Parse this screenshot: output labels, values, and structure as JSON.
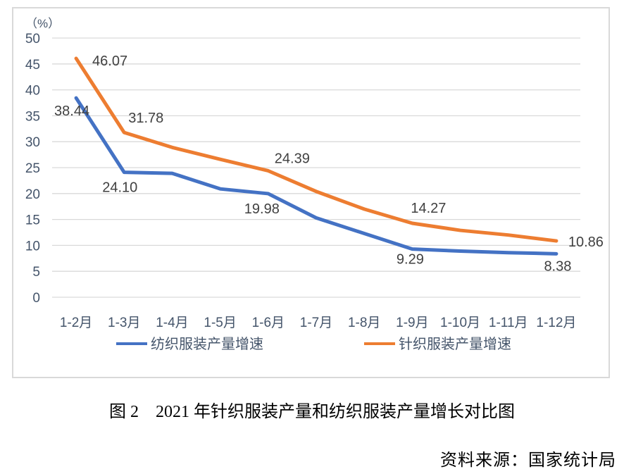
{
  "figure": {
    "caption": "图 2　2021 年针织服装产量和纺织服装产量增长对比图",
    "source": "资料来源：国家统计局"
  },
  "chart_data": {
    "type": "line",
    "title": "",
    "unit_label": "（%）",
    "categories": [
      "1-2月",
      "1-3月",
      "1-4月",
      "1-5月",
      "1-6月",
      "1-7月",
      "1-8月",
      "1-9月",
      "1-10月",
      "1-11月",
      "1-12月"
    ],
    "series": [
      {
        "name": "纺织服装产量增速",
        "color": "#4472C4",
        "values": [
          38.44,
          24.1,
          23.9,
          20.9,
          19.98,
          15.3,
          12.3,
          9.29,
          8.9,
          8.6,
          8.38
        ],
        "labeled_points": {
          "0": "38.44",
          "1": "24.10",
          "4": "19.98",
          "7": "9.29",
          "10": "8.38"
        }
      },
      {
        "name": "针织服装产量增速",
        "color": "#ED7D31",
        "values": [
          46.07,
          31.78,
          28.9,
          26.6,
          24.39,
          20.4,
          17.0,
          14.27,
          12.9,
          12.0,
          10.86
        ],
        "labeled_points": {
          "0": "46.07",
          "1": "31.78",
          "4": "24.39",
          "7": "14.27",
          "10": "10.86"
        }
      }
    ],
    "ylim": [
      0,
      50
    ],
    "yticks": [
      0,
      5,
      10,
      15,
      20,
      25,
      30,
      35,
      40,
      45,
      50
    ],
    "xlabel": "",
    "ylabel": "（%）",
    "grid": true,
    "legend_position": "bottom",
    "colors": {
      "gridline": "#D9D9D9",
      "frame_border": "#D9D9D9",
      "tick_text": "#44546A",
      "legend_text": "#44546A",
      "data_label_text": "#404040"
    }
  }
}
